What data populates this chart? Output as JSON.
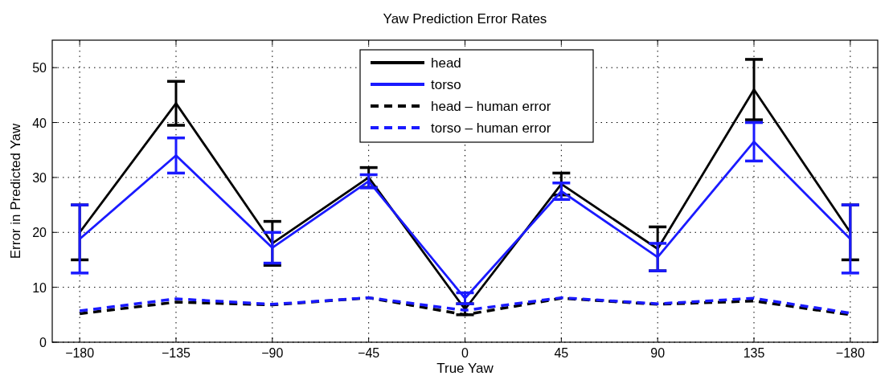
{
  "chart_data": {
    "type": "line",
    "title": "Yaw Prediction Error Rates",
    "xlabel": "True Yaw",
    "ylabel": "Error in Predicted Yaw",
    "categories": [
      "−180",
      "−135",
      "−90",
      "−45",
      "0",
      "45",
      "90",
      "135",
      "−180"
    ],
    "series": [
      {
        "name": "head",
        "color": "#000000",
        "line_style": "solid",
        "values": [
          20,
          43.5,
          18,
          30,
          6,
          28.8,
          17,
          46,
          20
        ],
        "errors": [
          5,
          4,
          4,
          1.8,
          1,
          2,
          4,
          5.5,
          5
        ]
      },
      {
        "name": "torso",
        "color": "#1a1aff",
        "line_style": "solid",
        "values": [
          18.8,
          34,
          17.2,
          29.3,
          8,
          27.5,
          15.5,
          36.5,
          18.8
        ],
        "errors": [
          6.2,
          3.2,
          2.8,
          1.2,
          1,
          1.5,
          2.5,
          3.5,
          6.2
        ]
      },
      {
        "name": "head – human error",
        "color": "#000000",
        "line_style": "dashed",
        "values": [
          5.2,
          7.3,
          6.8,
          8.1,
          5.0,
          8.0,
          6.9,
          7.5,
          5.0
        ]
      },
      {
        "name": "torso – human error",
        "color": "#1a1aff",
        "line_style": "dashed",
        "values": [
          5.7,
          7.9,
          6.9,
          8.1,
          5.8,
          8.1,
          7.0,
          8.0,
          5.3
        ]
      }
    ],
    "ylim": [
      0,
      55
    ],
    "yticks": [
      0,
      10,
      20,
      30,
      40,
      50
    ],
    "grid": true,
    "legend": "top",
    "marker": "none"
  }
}
